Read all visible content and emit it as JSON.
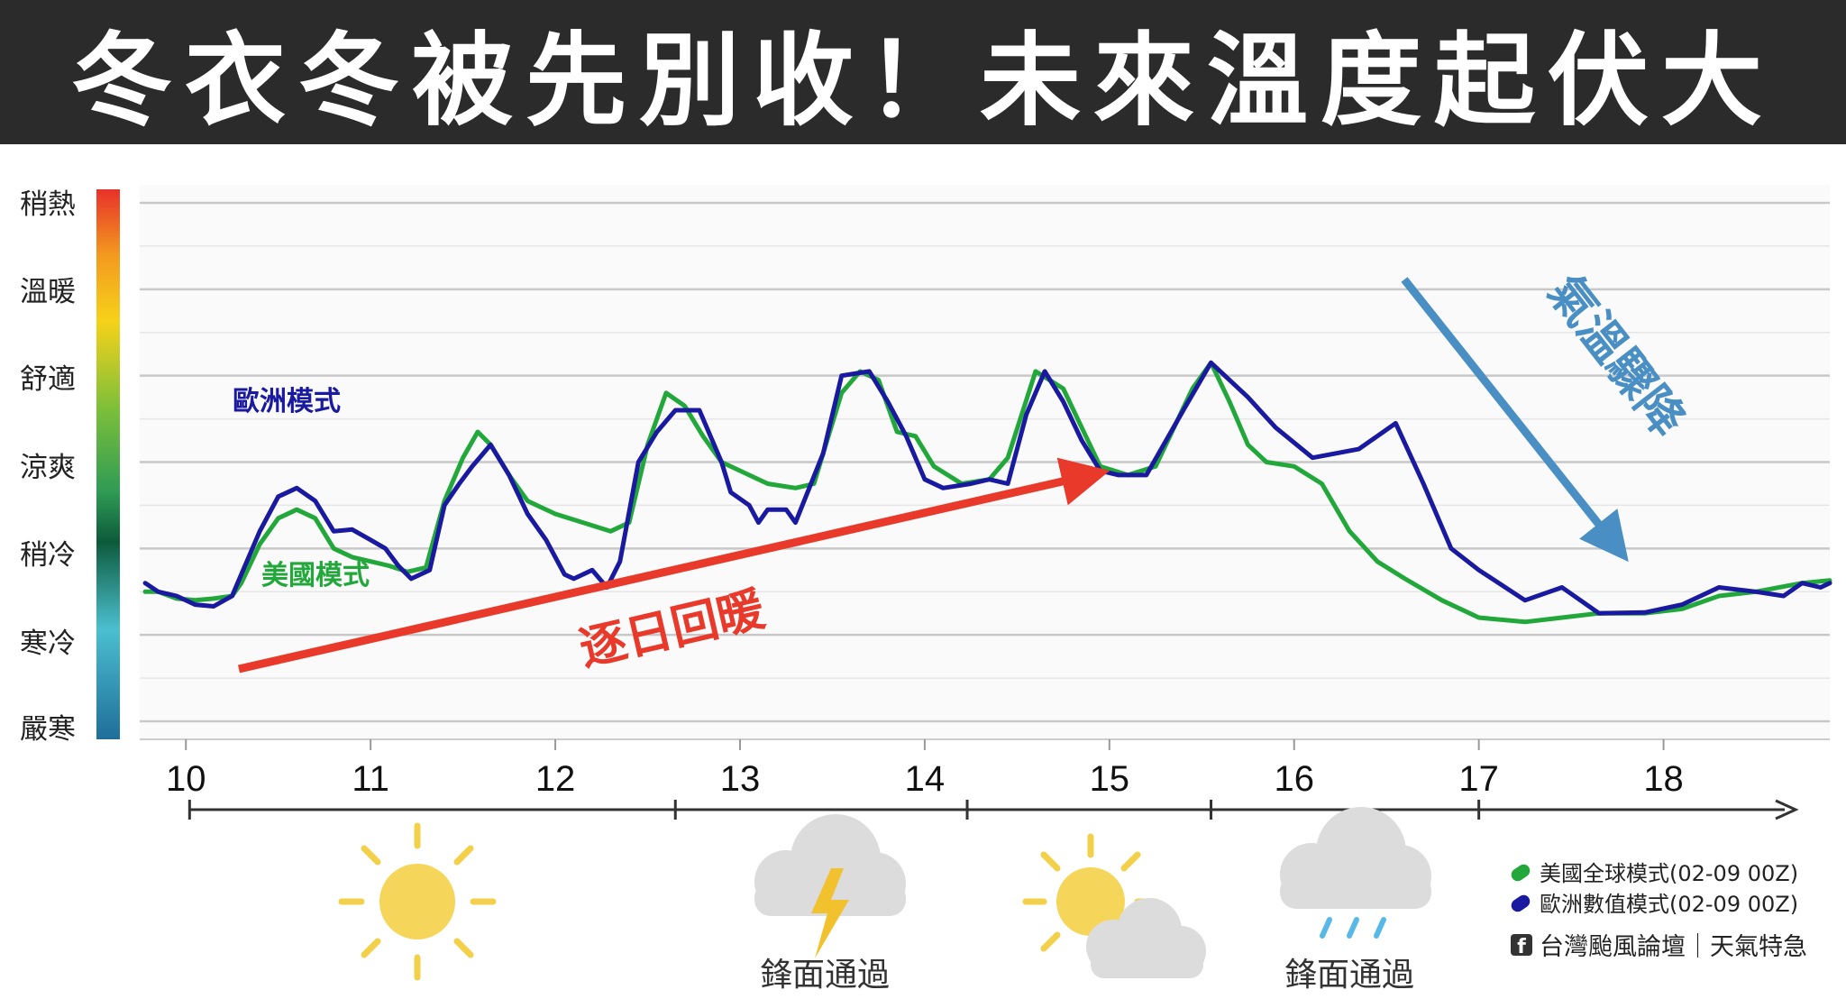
{
  "title": "冬衣冬被先別收！未來溫度起伏大",
  "colors": {
    "us_series": "#22a83a",
    "eu_series": "#1a1aa0",
    "warm_arrow": "#e8392a",
    "drop_arrow": "#4a8fc4",
    "banner_bg": "#2b2b2b"
  },
  "chart_data": {
    "type": "line",
    "y_scale_levels": [
      "稍熱",
      "溫暖",
      "舒適",
      "涼爽",
      "稍冷",
      "寒冷",
      "嚴寒"
    ],
    "ylim": [
      0,
      6
    ],
    "x_ticks": [
      "10",
      "11",
      "12",
      "13",
      "14",
      "15",
      "16",
      "17",
      "18"
    ],
    "xlim": [
      9.75,
      18.9
    ],
    "grid": true,
    "series": [
      {
        "name": "歐洲模式",
        "color": "#1a1aa0",
        "points": [
          [
            9.78,
            1.6
          ],
          [
            9.85,
            1.5
          ],
          [
            9.95,
            1.45
          ],
          [
            10.05,
            1.35
          ],
          [
            10.15,
            1.33
          ],
          [
            10.25,
            1.45
          ],
          [
            10.3,
            1.7
          ],
          [
            10.4,
            2.2
          ],
          [
            10.5,
            2.6
          ],
          [
            10.6,
            2.7
          ],
          [
            10.7,
            2.55
          ],
          [
            10.8,
            2.2
          ],
          [
            10.9,
            2.22
          ],
          [
            11.0,
            2.1
          ],
          [
            11.08,
            2.0
          ],
          [
            11.15,
            1.8
          ],
          [
            11.22,
            1.65
          ],
          [
            11.32,
            1.75
          ],
          [
            11.4,
            2.5
          ],
          [
            11.48,
            2.75
          ],
          [
            11.55,
            2.95
          ],
          [
            11.65,
            3.2
          ],
          [
            11.75,
            2.85
          ],
          [
            11.85,
            2.4
          ],
          [
            11.95,
            2.1
          ],
          [
            12.05,
            1.7
          ],
          [
            12.1,
            1.65
          ],
          [
            12.2,
            1.75
          ],
          [
            12.28,
            1.55
          ],
          [
            12.35,
            1.85
          ],
          [
            12.45,
            3.0
          ],
          [
            12.55,
            3.35
          ],
          [
            12.65,
            3.6
          ],
          [
            12.78,
            3.6
          ],
          [
            12.9,
            3.0
          ],
          [
            12.95,
            2.65
          ],
          [
            13.05,
            2.5
          ],
          [
            13.1,
            2.3
          ],
          [
            13.15,
            2.45
          ],
          [
            13.25,
            2.45
          ],
          [
            13.3,
            2.3
          ],
          [
            13.45,
            3.1
          ],
          [
            13.55,
            4.0
          ],
          [
            13.7,
            4.05
          ],
          [
            13.8,
            3.7
          ],
          [
            13.9,
            3.3
          ],
          [
            14.0,
            2.8
          ],
          [
            14.1,
            2.7
          ],
          [
            14.25,
            2.75
          ],
          [
            14.35,
            2.8
          ],
          [
            14.45,
            2.75
          ],
          [
            14.55,
            3.55
          ],
          [
            14.65,
            4.05
          ],
          [
            14.75,
            3.7
          ],
          [
            14.85,
            3.25
          ],
          [
            14.95,
            2.9
          ],
          [
            15.05,
            2.85
          ],
          [
            15.2,
            2.85
          ],
          [
            15.4,
            3.6
          ],
          [
            15.55,
            4.15
          ],
          [
            15.75,
            3.75
          ],
          [
            15.9,
            3.4
          ],
          [
            16.1,
            3.05
          ],
          [
            16.35,
            3.15
          ],
          [
            16.55,
            3.45
          ],
          [
            16.7,
            2.75
          ],
          [
            16.85,
            2.0
          ],
          [
            17.0,
            1.75
          ],
          [
            17.25,
            1.4
          ],
          [
            17.45,
            1.55
          ],
          [
            17.65,
            1.25
          ],
          [
            17.9,
            1.26
          ],
          [
            18.1,
            1.35
          ],
          [
            18.3,
            1.55
          ],
          [
            18.5,
            1.5
          ],
          [
            18.65,
            1.45
          ],
          [
            18.75,
            1.6
          ],
          [
            18.85,
            1.55
          ],
          [
            18.9,
            1.6
          ]
        ]
      },
      {
        "name": "美國模式",
        "color": "#22a83a",
        "points": [
          [
            9.78,
            1.5
          ],
          [
            9.85,
            1.5
          ],
          [
            9.95,
            1.42
          ],
          [
            10.05,
            1.4
          ],
          [
            10.15,
            1.42
          ],
          [
            10.25,
            1.45
          ],
          [
            10.3,
            1.6
          ],
          [
            10.4,
            2.05
          ],
          [
            10.5,
            2.35
          ],
          [
            10.6,
            2.45
          ],
          [
            10.7,
            2.35
          ],
          [
            10.8,
            2.0
          ],
          [
            10.9,
            1.9
          ],
          [
            11.0,
            1.85
          ],
          [
            11.1,
            1.8
          ],
          [
            11.2,
            1.73
          ],
          [
            11.3,
            1.78
          ],
          [
            11.4,
            2.55
          ],
          [
            11.5,
            3.05
          ],
          [
            11.58,
            3.35
          ],
          [
            11.65,
            3.2
          ],
          [
            11.75,
            2.85
          ],
          [
            11.85,
            2.55
          ],
          [
            12.0,
            2.4
          ],
          [
            12.15,
            2.3
          ],
          [
            12.3,
            2.2
          ],
          [
            12.4,
            2.3
          ],
          [
            12.5,
            3.2
          ],
          [
            12.6,
            3.8
          ],
          [
            12.7,
            3.65
          ],
          [
            12.8,
            3.3
          ],
          [
            12.9,
            3.0
          ],
          [
            13.0,
            2.9
          ],
          [
            13.15,
            2.75
          ],
          [
            13.3,
            2.7
          ],
          [
            13.4,
            2.75
          ],
          [
            13.55,
            3.8
          ],
          [
            13.65,
            4.05
          ],
          [
            13.75,
            3.95
          ],
          [
            13.85,
            3.35
          ],
          [
            13.95,
            3.3
          ],
          [
            14.05,
            2.95
          ],
          [
            14.2,
            2.75
          ],
          [
            14.35,
            2.8
          ],
          [
            14.45,
            3.05
          ],
          [
            14.6,
            4.05
          ],
          [
            14.75,
            3.85
          ],
          [
            14.85,
            3.4
          ],
          [
            14.95,
            2.95
          ],
          [
            15.1,
            2.85
          ],
          [
            15.25,
            2.95
          ],
          [
            15.45,
            3.85
          ],
          [
            15.55,
            4.15
          ],
          [
            15.65,
            3.7
          ],
          [
            15.75,
            3.2
          ],
          [
            15.85,
            3.0
          ],
          [
            16.0,
            2.95
          ],
          [
            16.15,
            2.75
          ],
          [
            16.3,
            2.2
          ],
          [
            16.45,
            1.85
          ],
          [
            16.6,
            1.65
          ],
          [
            16.8,
            1.4
          ],
          [
            17.0,
            1.2
          ],
          [
            17.25,
            1.15
          ],
          [
            17.45,
            1.2
          ],
          [
            17.65,
            1.25
          ],
          [
            17.9,
            1.25
          ],
          [
            18.1,
            1.3
          ],
          [
            18.3,
            1.45
          ],
          [
            18.5,
            1.5
          ],
          [
            18.75,
            1.6
          ],
          [
            18.9,
            1.63
          ]
        ]
      }
    ],
    "annotations": {
      "warming": "逐日回暖",
      "drop": "氣溫驟降"
    },
    "period_dividers": [
      12.65,
      14.23,
      15.55,
      17.0
    ],
    "weather": [
      {
        "icon": "sun-icon",
        "label": ""
      },
      {
        "icon": "thunder-cloud-icon",
        "label": "鋒面通過"
      },
      {
        "icon": "sun-cloud-icon",
        "label": ""
      },
      {
        "icon": "rain-cloud-icon",
        "label": "鋒面通過"
      }
    ],
    "legend": [
      {
        "label": "美國全球模式(02-09 00Z)",
        "color": "#22a83a"
      },
      {
        "label": "歐洲數值模式(02-09 00Z)",
        "color": "#1a1aa0"
      }
    ]
  },
  "credit": "台灣颱風論壇｜天氣特急"
}
